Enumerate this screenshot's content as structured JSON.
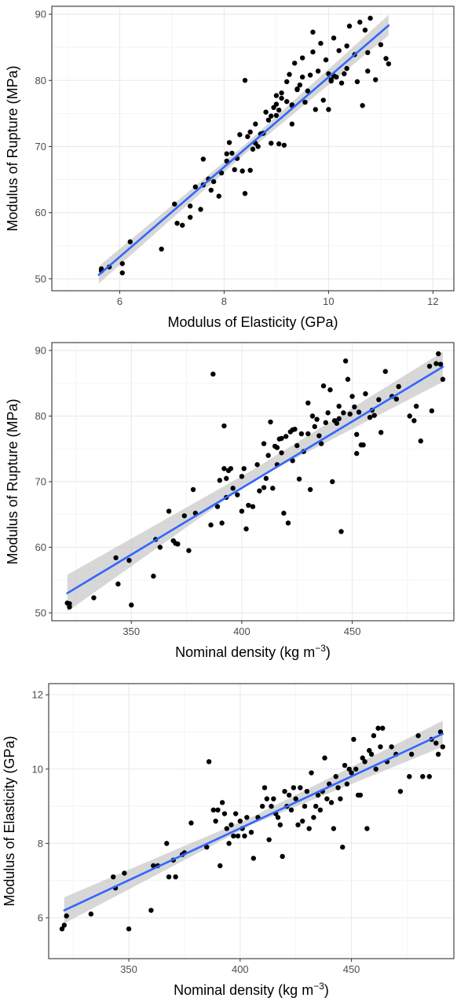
{
  "chart_data": [
    {
      "type": "scatter",
      "xlabel": "Modulus of Elasticity (GPa)",
      "ylabel": "Modulus of Rupture (MPa)",
      "xlim": [
        4.7,
        12.4
      ],
      "ylim": [
        48.2,
        91.2
      ],
      "xticks": [
        6,
        8,
        10,
        12
      ],
      "yticks": [
        50,
        60,
        70,
        80,
        90
      ],
      "grid": true,
      "colors": {
        "points": "#000000",
        "fit": "#3366ff",
        "band": "#bdbdbd"
      },
      "fit_line": {
        "x": [
          5.6,
          11.15
        ],
        "y": [
          50.6,
          88.3
        ]
      },
      "confidence_band": {
        "x": [
          5.6,
          8.4,
          11.15
        ],
        "lower": [
          49.3,
          68.9,
          86.8
        ],
        "upper": [
          51.9,
          70.3,
          89.9
        ]
      },
      "points": {
        "x": [
          5.65,
          5.65,
          5.8,
          6.05,
          6.05,
          6.2,
          6.8,
          7.05,
          7.1,
          7.2,
          7.35,
          7.35,
          7.45,
          7.55,
          7.6,
          7.6,
          7.7,
          7.75,
          7.8,
          7.9,
          7.95,
          8.05,
          8.1,
          8.15,
          8.2,
          8.25,
          8.3,
          8.35,
          8.4,
          8.4,
          8.45,
          8.5,
          8.55,
          8.6,
          8.6,
          8.65,
          8.7,
          8.75,
          8.8,
          8.85,
          8.9,
          8.95,
          9.0,
          9.0,
          9.05,
          9.05,
          9.1,
          9.1,
          9.15,
          9.2,
          9.2,
          9.25,
          9.3,
          9.3,
          9.35,
          9.4,
          9.45,
          9.5,
          9.5,
          9.55,
          9.6,
          9.65,
          9.7,
          9.75,
          9.8,
          9.85,
          9.9,
          9.95,
          10.0,
          10.0,
          10.05,
          10.1,
          10.1,
          10.15,
          10.2,
          10.25,
          10.3,
          10.35,
          10.4,
          10.5,
          10.6,
          10.65,
          10.7,
          10.75,
          10.8,
          10.9,
          11.0,
          11.1,
          11.15,
          9.0,
          9.4,
          9.7,
          10.05,
          10.35,
          10.55,
          10.75,
          8.05,
          8.5,
          8.9,
          9.3
        ],
        "y": [
          51.5,
          51.2,
          51.8,
          52.3,
          50.9,
          55.6,
          54.5,
          61.3,
          58.4,
          58.1,
          61.0,
          59.3,
          63.9,
          60.5,
          64.2,
          68.1,
          65.1,
          63.4,
          64.7,
          62.5,
          66.0,
          67.8,
          70.6,
          69.0,
          66.5,
          68.2,
          71.8,
          66.3,
          62.9,
          80.0,
          71.5,
          72.2,
          69.6,
          73.4,
          70.5,
          70.0,
          71.9,
          72.0,
          75.2,
          74.0,
          70.5,
          75.9,
          74.7,
          77.7,
          75.5,
          70.4,
          77.3,
          78.1,
          70.2,
          76.8,
          79.8,
          80.9,
          73.4,
          76.2,
          82.6,
          78.7,
          79.3,
          80.5,
          83.4,
          76.7,
          78.4,
          80.8,
          84.3,
          75.6,
          81.4,
          85.6,
          77.0,
          83.1,
          75.6,
          81.0,
          79.9,
          80.7,
          86.4,
          80.5,
          84.5,
          79.6,
          81.0,
          85.2,
          88.2,
          83.9,
          88.8,
          76.2,
          87.6,
          81.4,
          89.4,
          80.1,
          85.4,
          83.3,
          82.5,
          76.4,
          78.6,
          87.3,
          80.1,
          81.8,
          79.8,
          84.2,
          68.9,
          66.4,
          74.6,
          76.3
        ]
      }
    },
    {
      "type": "scatter",
      "xlabel": "Nominal density (kg m",
      "xlabel_sup": "−3",
      "xlabel_end": ")",
      "ylabel": "Modulus of Rupture (MPa)",
      "xlim": [
        314,
        496
      ],
      "ylim": [
        48.8,
        91.2
      ],
      "xticks": [
        350,
        400,
        450
      ],
      "yticks": [
        50,
        60,
        70,
        80,
        90
      ],
      "grid": true,
      "colors": {
        "points": "#000000",
        "fit": "#3366ff",
        "band": "#bdbdbd"
      },
      "fit_line": {
        "x": [
          321,
          491
        ],
        "y": [
          53.0,
          87.5
        ]
      },
      "confidence_band": {
        "x": [
          321,
          405,
          491
        ],
        "lower": [
          50.2,
          70.2,
          85.2
        ],
        "upper": [
          55.8,
          71.8,
          89.8
        ]
      },
      "points": {
        "x": [
          321,
          322,
          322,
          333,
          343,
          344,
          349,
          350,
          360,
          361,
          363,
          367,
          369,
          370,
          371,
          374,
          376,
          378,
          379,
          386,
          387,
          389,
          390,
          391,
          392,
          393,
          393,
          394,
          395,
          396,
          398,
          400,
          400,
          401,
          402,
          403,
          405,
          407,
          408,
          410,
          411,
          412,
          413,
          414,
          415,
          416,
          416,
          417,
          418,
          419,
          420,
          421,
          422,
          423,
          423,
          424,
          425,
          426,
          427,
          428,
          430,
          431,
          432,
          433,
          434,
          435,
          436,
          437,
          438,
          439,
          440,
          441,
          442,
          443,
          444,
          445,
          446,
          447,
          448,
          449,
          450,
          451,
          452,
          453,
          454,
          455,
          456,
          458,
          460,
          462,
          463,
          465,
          468,
          471,
          476,
          478,
          479,
          481,
          485,
          486,
          488,
          489,
          490,
          491,
          392,
          410,
          418,
          430,
          444,
          452,
          459,
          470
        ],
        "y": [
          51.5,
          51.4,
          50.9,
          52.3,
          58.4,
          54.4,
          58.0,
          51.2,
          55.6,
          61.2,
          60.0,
          65.5,
          61.0,
          60.6,
          60.5,
          64.8,
          59.5,
          68.8,
          65.2,
          63.4,
          86.4,
          66.2,
          70.2,
          63.7,
          72.0,
          70.5,
          67.6,
          71.7,
          72.0,
          69.0,
          68.0,
          70.8,
          65.5,
          72.0,
          62.8,
          66.4,
          66.2,
          72.6,
          68.6,
          69.1,
          70.5,
          74.0,
          79.1,
          69.0,
          75.4,
          72.6,
          75.2,
          76.5,
          76.6,
          65.2,
          76.9,
          63.7,
          77.6,
          77.9,
          73.2,
          78.0,
          75.5,
          70.4,
          77.3,
          74.6,
          82.0,
          68.8,
          80.0,
          78.4,
          79.5,
          77.0,
          75.8,
          84.6,
          79.0,
          80.5,
          84.0,
          70.0,
          79.3,
          78.9,
          81.5,
          62.4,
          80.5,
          88.4,
          85.6,
          80.3,
          83.0,
          81.4,
          74.3,
          80.6,
          75.6,
          75.6,
          83.4,
          79.8,
          80.1,
          82.5,
          77.5,
          86.8,
          83.0,
          84.5,
          80.0,
          79.3,
          81.5,
          76.2,
          87.6,
          80.8,
          88.0,
          89.5,
          87.9,
          85.6,
          78.5,
          75.8,
          74.4,
          77.3,
          79.6,
          77.2,
          80.9,
          82.6
        ]
      }
    },
    {
      "type": "scatter",
      "xlabel": "Nominal density (kg m",
      "xlabel_sup": "−3",
      "xlabel_end": ")",
      "ylabel": "Modulus of Elasticity (GPa)",
      "xlim": [
        314,
        496
      ],
      "ylim": [
        4.9,
        12.3
      ],
      "xticks": [
        350,
        400,
        450
      ],
      "yticks": [
        6,
        8,
        10,
        12
      ],
      "grid": true,
      "colors": {
        "points": "#000000",
        "fit": "#3366ff",
        "band": "#bdbdbd"
      },
      "fit_line": {
        "x": [
          321,
          491
        ],
        "y": [
          6.2,
          10.95
        ]
      },
      "confidence_band": {
        "x": [
          321,
          405,
          491
        ],
        "lower": [
          5.85,
          8.5,
          10.6
        ],
        "upper": [
          6.55,
          8.7,
          11.3
        ]
      },
      "points": {
        "x": [
          320,
          321,
          322,
          333,
          343,
          344,
          348,
          350,
          360,
          361,
          363,
          367,
          368,
          370,
          371,
          374,
          375,
          378,
          385,
          386,
          388,
          389,
          390,
          391,
          392,
          393,
          394,
          395,
          396,
          397,
          398,
          399,
          400,
          401,
          402,
          403,
          405,
          406,
          408,
          410,
          411,
          412,
          413,
          414,
          415,
          416,
          417,
          418,
          419,
          420,
          421,
          422,
          423,
          424,
          425,
          426,
          427,
          428,
          429,
          430,
          431,
          432,
          433,
          434,
          435,
          436,
          437,
          438,
          439,
          440,
          441,
          442,
          443,
          444,
          445,
          446,
          447,
          448,
          449,
          450,
          451,
          452,
          453,
          454,
          455,
          456,
          457,
          458,
          459,
          460,
          461,
          462,
          463,
          464,
          466,
          468,
          470,
          472,
          476,
          477,
          480,
          482,
          485,
          486,
          488,
          489,
          490,
          491
        ],
        "y": [
          5.7,
          5.8,
          6.05,
          6.1,
          7.1,
          6.8,
          7.2,
          5.7,
          6.2,
          7.4,
          7.4,
          8.0,
          7.1,
          7.55,
          7.1,
          7.7,
          7.75,
          8.55,
          7.9,
          10.2,
          8.9,
          8.6,
          8.9,
          7.4,
          9.1,
          8.8,
          8.4,
          8.0,
          8.5,
          8.2,
          8.8,
          8.2,
          8.6,
          8.4,
          8.2,
          8.7,
          8.3,
          7.6,
          8.7,
          9.0,
          9.5,
          9.2,
          8.1,
          9.0,
          9.2,
          8.8,
          8.7,
          8.5,
          7.65,
          9.4,
          9.0,
          9.3,
          8.9,
          9.5,
          9.2,
          8.5,
          9.5,
          8.6,
          9.0,
          9.4,
          8.4,
          9.9,
          8.7,
          9.0,
          9.3,
          8.9,
          9.4,
          10.3,
          9.2,
          9.6,
          9.1,
          8.4,
          9.8,
          9.5,
          9.2,
          7.9,
          10.1,
          9.6,
          10.0,
          9.9,
          10.8,
          10.0,
          9.3,
          9.3,
          10.3,
          10.2,
          8.4,
          10.5,
          10.4,
          10.9,
          10.0,
          11.1,
          10.6,
          11.1,
          10.2,
          10.6,
          10.4,
          9.4,
          9.8,
          10.4,
          10.9,
          9.8,
          9.8,
          10.8,
          10.7,
          10.4,
          11.0,
          10.6
        ]
      }
    }
  ]
}
